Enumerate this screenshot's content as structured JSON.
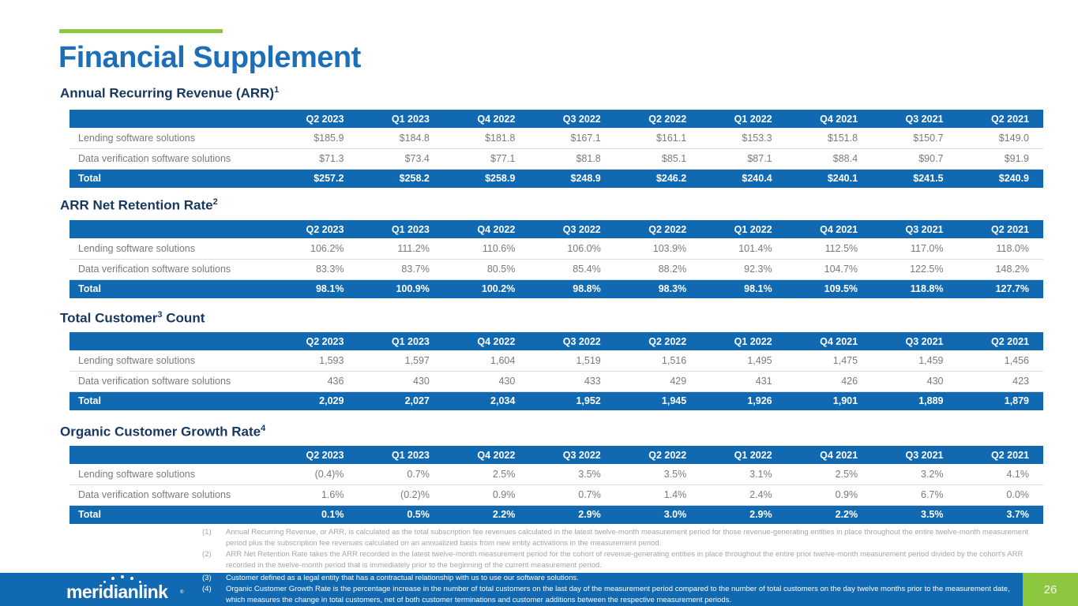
{
  "title": "Financial Supplement",
  "colors": {
    "brand_blue": "#1169b2",
    "heading_navy": "#17375e",
    "accent_green": "#8dc63f",
    "body_gray": "#7a7a7a",
    "footnote_gray": "#a6a6a6"
  },
  "columns": [
    "Q2 2023",
    "Q1 2023",
    "Q4 2022",
    "Q3 2022",
    "Q2 2022",
    "Q1 2022",
    "Q4 2021",
    "Q3 2021",
    "Q2 2021"
  ],
  "tables": [
    {
      "heading": {
        "pre": "Annual Recurring Revenue (ARR)",
        "sup": "1",
        "post": ""
      },
      "rows": [
        {
          "label": "Lending software solutions",
          "values": [
            "$185.9",
            "$184.8",
            "$181.8",
            "$167.1",
            "$161.1",
            "$153.3",
            "$151.8",
            "$150.7",
            "$149.0"
          ]
        },
        {
          "label": "Data verification software solutions",
          "values": [
            "$71.3",
            "$73.4",
            "$77.1",
            "$81.8",
            "$85.1",
            "$87.1",
            "$88.4",
            "$90.7",
            "$91.9"
          ]
        }
      ],
      "total": {
        "label": "Total",
        "values": [
          "$257.2",
          "$258.2",
          "$258.9",
          "$248.9",
          "$246.2",
          "$240.4",
          "$240.1",
          "$241.5",
          "$240.9"
        ]
      }
    },
    {
      "heading": {
        "pre": "ARR Net Retention Rate",
        "sup": "2",
        "post": ""
      },
      "rows": [
        {
          "label": "Lending software solutions",
          "values": [
            "106.2%",
            "111.2%",
            "110.6%",
            "106.0%",
            "103.9%",
            "101.4%",
            "112.5%",
            "117.0%",
            "118.0%"
          ]
        },
        {
          "label": "Data verification software solutions",
          "values": [
            "83.3%",
            "83.7%",
            "80.5%",
            "85.4%",
            "88.2%",
            "92.3%",
            "104.7%",
            "122.5%",
            "148.2%"
          ]
        }
      ],
      "total": {
        "label": "Total",
        "values": [
          "98.1%",
          "100.9%",
          "100.2%",
          "98.8%",
          "98.3%",
          "98.1%",
          "109.5%",
          "118.8%",
          "127.7%"
        ]
      }
    },
    {
      "heading": {
        "pre": "Total Customer",
        "sup": "3",
        "post": " Count"
      },
      "rows": [
        {
          "label": "Lending software solutions",
          "values": [
            "1,593",
            "1,597",
            "1,604",
            "1,519",
            "1,516",
            "1,495",
            "1,475",
            "1,459",
            "1,456"
          ]
        },
        {
          "label": "Data verification software solutions",
          "values": [
            "436",
            "430",
            "430",
            "433",
            "429",
            "431",
            "426",
            "430",
            "423"
          ]
        }
      ],
      "total": {
        "label": "Total",
        "values": [
          "2,029",
          "2,027",
          "2,034",
          "1,952",
          "1,945",
          "1,926",
          "1,901",
          "1,889",
          "1,879"
        ]
      }
    },
    {
      "heading": {
        "pre": "Organic Customer Growth Rate",
        "sup": "4",
        "post": ""
      },
      "rows": [
        {
          "label": "Lending software solutions",
          "values": [
            "(0.4)%",
            "0.7%",
            "2.5%",
            "3.5%",
            "3.5%",
            "3.1%",
            "2.5%",
            "3.2%",
            "4.1%"
          ]
        },
        {
          "label": "Data verification software solutions",
          "values": [
            "1.6%",
            "(0.2)%",
            "0.9%",
            "0.7%",
            "1.4%",
            "2.4%",
            "0.9%",
            "6.7%",
            "0.0%"
          ]
        }
      ],
      "total": {
        "label": "Total",
        "values": [
          "0.1%",
          "0.5%",
          "2.2%",
          "2.9%",
          "3.0%",
          "2.9%",
          "2.2%",
          "3.5%",
          "3.7%"
        ]
      }
    }
  ],
  "footnotes": [
    {
      "num": "(1)",
      "text": "Annual Recurring Revenue, or ARR, is calculated as the total subscription fee revenues calculated in the latest twelve-month measurement period for those revenue-generating entities in place throughout the entire twelve-month measurement period plus the subscription fee revenues calculated on an annualized basis from new entity activations in the measurement period."
    },
    {
      "num": "(2)",
      "text": "ARR Net Retention Rate takes the ARR recorded in the latest twelve-month measurement period for the cohort of revenue-generating entities in place throughout the entire prior twelve-month measurement period divided by the cohort's ARR recorded in the twelve-month period that is immediately prior to the beginning of the current measurement period."
    },
    {
      "num": "(3)",
      "text": "Customer defined as a legal entity that has a contractual relationship with us to use our software solutions."
    },
    {
      "num": "(4)",
      "text": "Organic Customer Growth Rate is the percentage increase in the number of total customers on the last day of the measurement period compared to the number of total customers on the day twelve months prior to the measurement date, which measures the change in total customers, net of both customer terminations and customer additions between the respective measurement periods."
    }
  ],
  "footer": {
    "logo_text": "meridianlink",
    "logo_reg": "®",
    "page_number": "26"
  }
}
